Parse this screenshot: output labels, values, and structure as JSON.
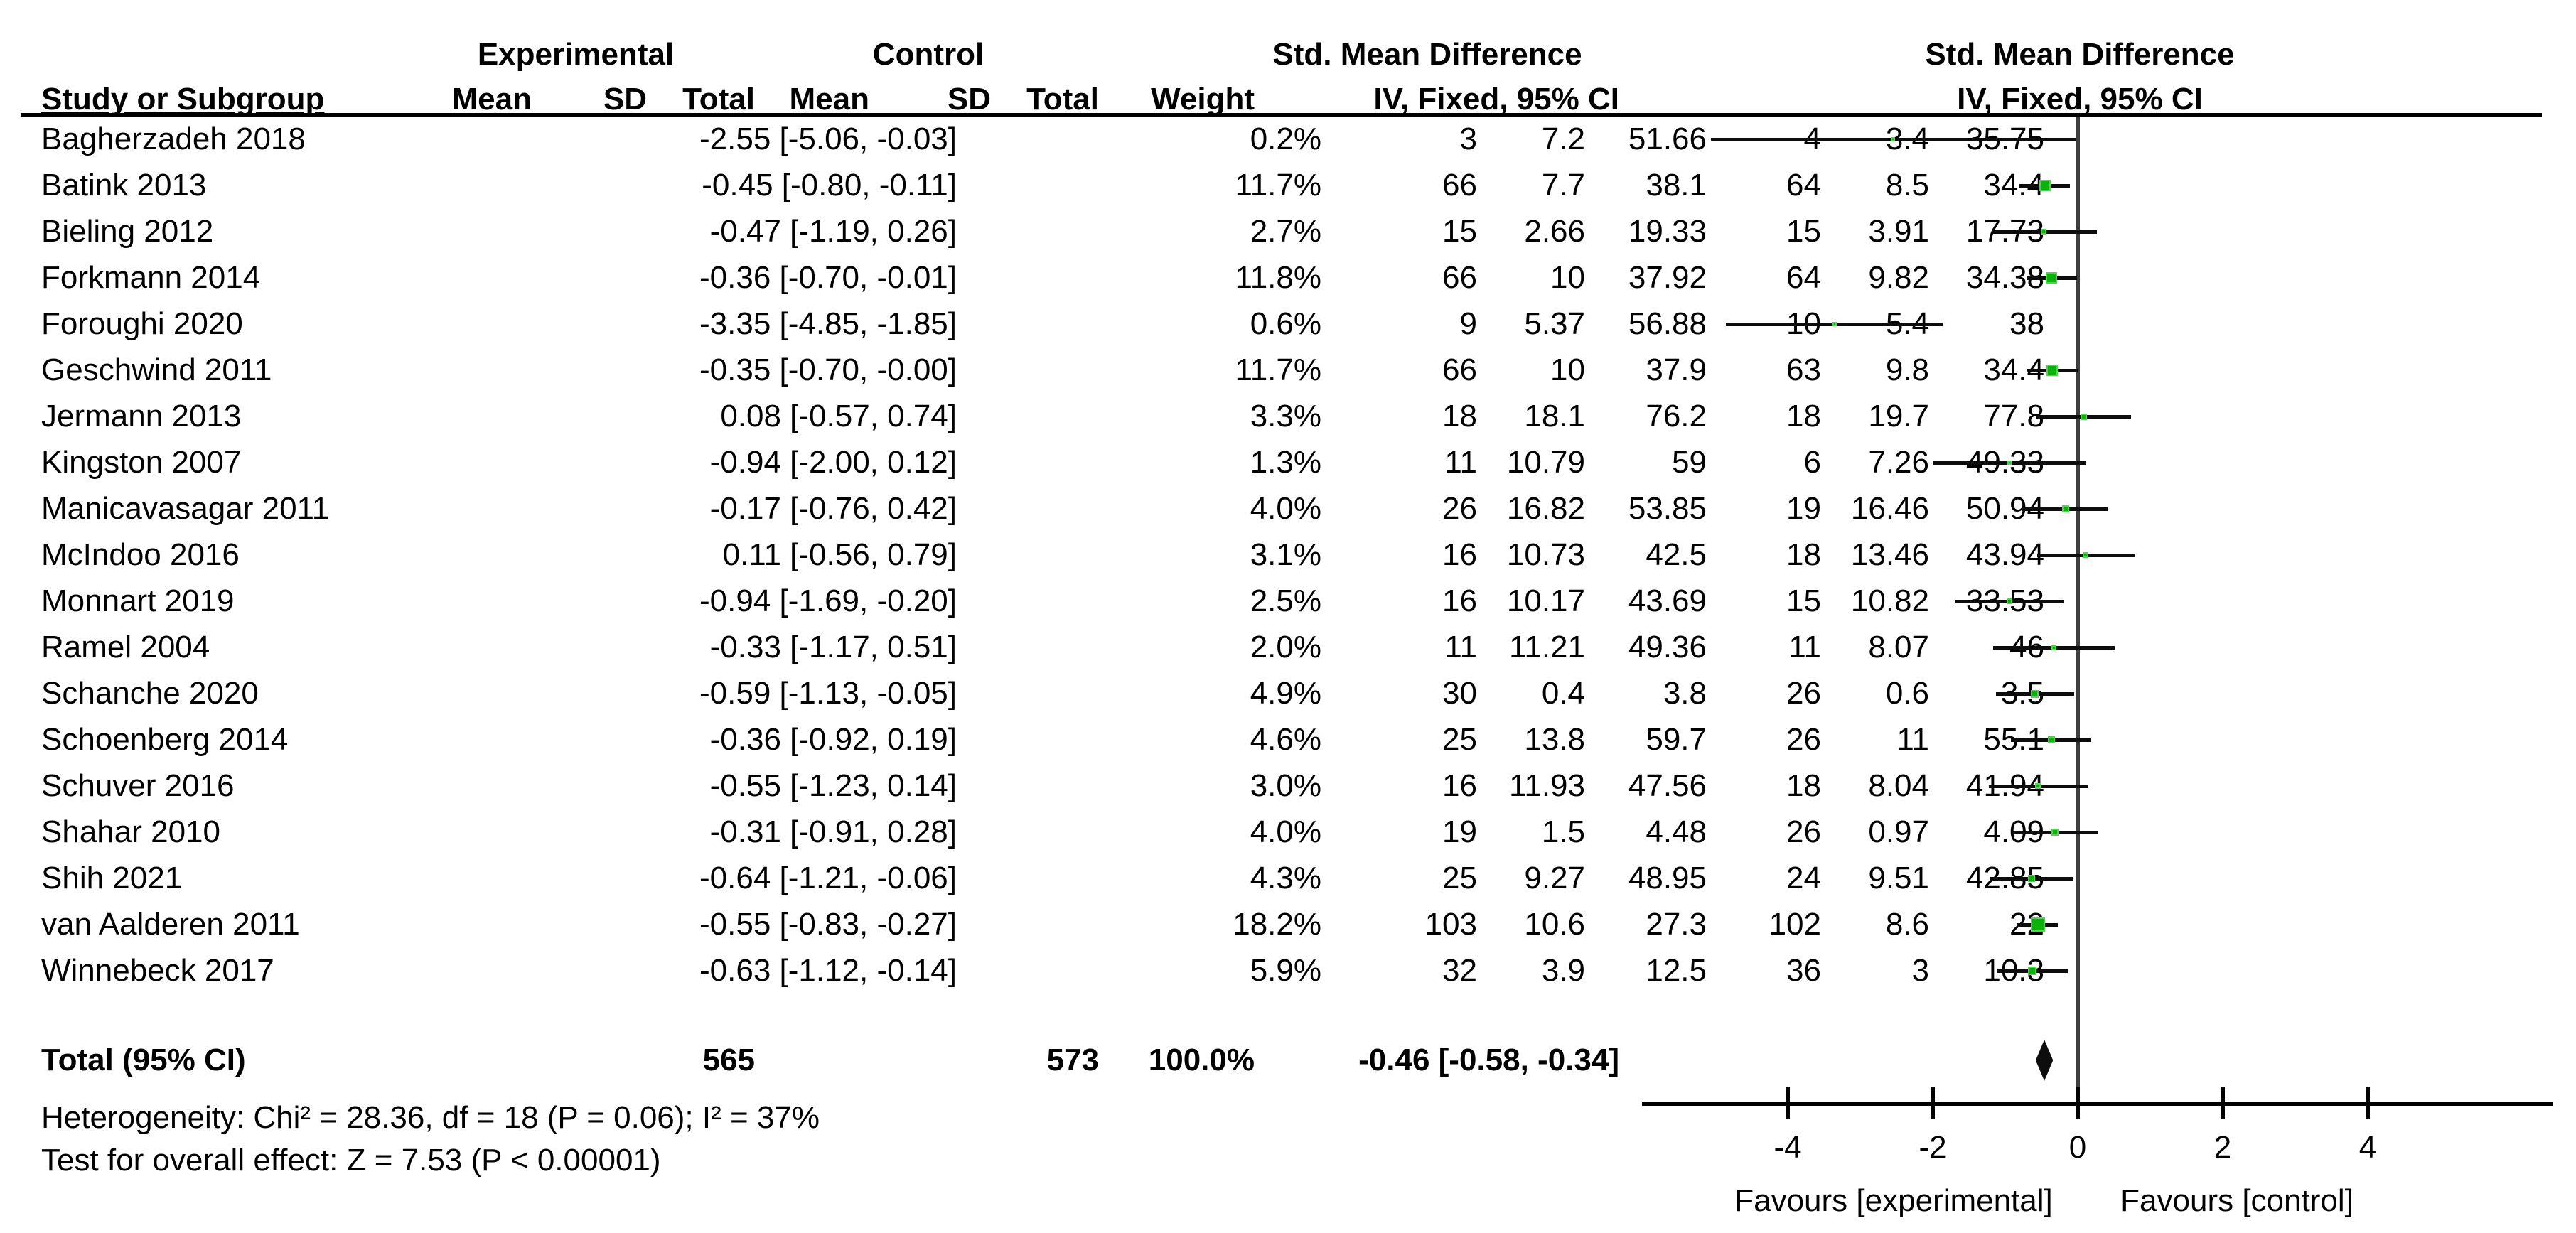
{
  "colors": {
    "marker_green": "#0ab20a",
    "marker_green_border": "#55d055",
    "line_black": "#0d0d0d",
    "zero_line_gray": "#3d3d3d",
    "background": "#ffffff"
  },
  "header": {
    "group_experimental": "Experimental",
    "group_control": "Control",
    "group_smd_table": "Std. Mean Difference",
    "group_smd_plot": "Std. Mean Difference",
    "col_study": "Study or Subgroup",
    "col_mean_exp": "Mean",
    "col_sd_exp": "SD",
    "col_total_exp": "Total",
    "col_mean_ctrl": "Mean",
    "col_sd_ctrl": "SD",
    "col_total_ctrl": "Total",
    "col_weight": "Weight",
    "col_method_table": "IV, Fixed, 95% CI",
    "col_method_plot": "IV, Fixed, 95% CI"
  },
  "chart_data": {
    "type": "forest",
    "effect_measure": "Std. Mean Difference",
    "method": "IV, Fixed, 95% CI",
    "x_axis": {
      "ticks": [
        -4,
        -2,
        0,
        2,
        4
      ],
      "min": -6,
      "max": 6.5,
      "zero_reference": 0
    },
    "favours_left": "Favours [experimental]",
    "favours_right": "Favours [control]",
    "studies": [
      {
        "name": "Bagherzadeh 2018",
        "mean_e": "35.75",
        "sd_e": "3.4",
        "total_e": "4",
        "mean_c": "51.66",
        "sd_c": "7.2",
        "total_c": "3",
        "weight": "0.2%",
        "weight_value": 0.2,
        "smd": -2.55,
        "ci_low": -5.06,
        "ci_high": -0.03,
        "smd_ci_label": "-2.55 [-5.06, -0.03]"
      },
      {
        "name": "Batink 2013",
        "mean_e": "34.4",
        "sd_e": "8.5",
        "total_e": "64",
        "mean_c": "38.1",
        "sd_c": "7.7",
        "total_c": "66",
        "weight": "11.7%",
        "weight_value": 11.7,
        "smd": -0.45,
        "ci_low": -0.8,
        "ci_high": -0.11,
        "smd_ci_label": "-0.45 [-0.80, -0.11]"
      },
      {
        "name": "Bieling 2012",
        "mean_e": "17.73",
        "sd_e": "3.91",
        "total_e": "15",
        "mean_c": "19.33",
        "sd_c": "2.66",
        "total_c": "15",
        "weight": "2.7%",
        "weight_value": 2.7,
        "smd": -0.47,
        "ci_low": -1.19,
        "ci_high": 0.26,
        "smd_ci_label": "-0.47 [-1.19, 0.26]"
      },
      {
        "name": "Forkmann 2014",
        "mean_e": "34.38",
        "sd_e": "9.82",
        "total_e": "64",
        "mean_c": "37.92",
        "sd_c": "10",
        "total_c": "66",
        "weight": "11.8%",
        "weight_value": 11.8,
        "smd": -0.36,
        "ci_low": -0.7,
        "ci_high": -0.01,
        "smd_ci_label": "-0.36 [-0.70, -0.01]"
      },
      {
        "name": "Foroughi 2020",
        "mean_e": "38",
        "sd_e": "5.4",
        "total_e": "10",
        "mean_c": "56.88",
        "sd_c": "5.37",
        "total_c": "9",
        "weight": "0.6%",
        "weight_value": 0.6,
        "smd": -3.35,
        "ci_low": -4.85,
        "ci_high": -1.85,
        "smd_ci_label": "-3.35 [-4.85, -1.85]"
      },
      {
        "name": "Geschwind 2011",
        "mean_e": "34.4",
        "sd_e": "9.8",
        "total_e": "63",
        "mean_c": "37.9",
        "sd_c": "10",
        "total_c": "66",
        "weight": "11.7%",
        "weight_value": 11.7,
        "smd": -0.35,
        "ci_low": -0.7,
        "ci_high": 0.0,
        "smd_ci_label": "-0.35 [-0.70, -0.00]"
      },
      {
        "name": "Jermann 2013",
        "mean_e": "77.8",
        "sd_e": "19.7",
        "total_e": "18",
        "mean_c": "76.2",
        "sd_c": "18.1",
        "total_c": "18",
        "weight": "3.3%",
        "weight_value": 3.3,
        "smd": 0.08,
        "ci_low": -0.57,
        "ci_high": 0.74,
        "smd_ci_label": "0.08 [-0.57, 0.74]"
      },
      {
        "name": "Kingston 2007",
        "mean_e": "49.33",
        "sd_e": "7.26",
        "total_e": "6",
        "mean_c": "59",
        "sd_c": "10.79",
        "total_c": "11",
        "weight": "1.3%",
        "weight_value": 1.3,
        "smd": -0.94,
        "ci_low": -2.0,
        "ci_high": 0.12,
        "smd_ci_label": "-0.94 [-2.00, 0.12]"
      },
      {
        "name": "Manicavasagar 2011",
        "mean_e": "50.94",
        "sd_e": "16.46",
        "total_e": "19",
        "mean_c": "53.85",
        "sd_c": "16.82",
        "total_c": "26",
        "weight": "4.0%",
        "weight_value": 4.0,
        "smd": -0.17,
        "ci_low": -0.76,
        "ci_high": 0.42,
        "smd_ci_label": "-0.17 [-0.76, 0.42]"
      },
      {
        "name": "McIndoo 2016",
        "mean_e": "43.94",
        "sd_e": "13.46",
        "total_e": "18",
        "mean_c": "42.5",
        "sd_c": "10.73",
        "total_c": "16",
        "weight": "3.1%",
        "weight_value": 3.1,
        "smd": 0.11,
        "ci_low": -0.56,
        "ci_high": 0.79,
        "smd_ci_label": "0.11 [-0.56, 0.79]"
      },
      {
        "name": "Monnart 2019",
        "mean_e": "33.53",
        "sd_e": "10.82",
        "total_e": "15",
        "mean_c": "43.69",
        "sd_c": "10.17",
        "total_c": "16",
        "weight": "2.5%",
        "weight_value": 2.5,
        "smd": -0.94,
        "ci_low": -1.69,
        "ci_high": -0.2,
        "smd_ci_label": "-0.94 [-1.69, -0.20]"
      },
      {
        "name": "Ramel 2004",
        "mean_e": "46",
        "sd_e": "8.07",
        "total_e": "11",
        "mean_c": "49.36",
        "sd_c": "11.21",
        "total_c": "11",
        "weight": "2.0%",
        "weight_value": 2.0,
        "smd": -0.33,
        "ci_low": -1.17,
        "ci_high": 0.51,
        "smd_ci_label": "-0.33 [-1.17, 0.51]"
      },
      {
        "name": "Schanche 2020",
        "mean_e": "3.5",
        "sd_e": "0.6",
        "total_e": "26",
        "mean_c": "3.8",
        "sd_c": "0.4",
        "total_c": "30",
        "weight": "4.9%",
        "weight_value": 4.9,
        "smd": -0.59,
        "ci_low": -1.13,
        "ci_high": -0.05,
        "smd_ci_label": "-0.59 [-1.13, -0.05]"
      },
      {
        "name": "Schoenberg 2014",
        "mean_e": "55.1",
        "sd_e": "11",
        "total_e": "26",
        "mean_c": "59.7",
        "sd_c": "13.8",
        "total_c": "25",
        "weight": "4.6%",
        "weight_value": 4.6,
        "smd": -0.36,
        "ci_low": -0.92,
        "ci_high": 0.19,
        "smd_ci_label": "-0.36 [-0.92, 0.19]"
      },
      {
        "name": "Schuver 2016",
        "mean_e": "41.94",
        "sd_e": "8.04",
        "total_e": "18",
        "mean_c": "47.56",
        "sd_c": "11.93",
        "total_c": "16",
        "weight": "3.0%",
        "weight_value": 3.0,
        "smd": -0.55,
        "ci_low": -1.23,
        "ci_high": 0.14,
        "smd_ci_label": "-0.55 [-1.23, 0.14]"
      },
      {
        "name": "Shahar 2010",
        "mean_e": "4.09",
        "sd_e": "0.97",
        "total_e": "26",
        "mean_c": "4.48",
        "sd_c": "1.5",
        "total_c": "19",
        "weight": "4.0%",
        "weight_value": 4.0,
        "smd": -0.31,
        "ci_low": -0.91,
        "ci_high": 0.28,
        "smd_ci_label": "-0.31 [-0.91, 0.28]"
      },
      {
        "name": "Shih 2021",
        "mean_e": "42.85",
        "sd_e": "9.51",
        "total_e": "24",
        "mean_c": "48.95",
        "sd_c": "9.27",
        "total_c": "25",
        "weight": "4.3%",
        "weight_value": 4.3,
        "smd": -0.64,
        "ci_low": -1.21,
        "ci_high": -0.06,
        "smd_ci_label": "-0.64 [-1.21, -0.06]"
      },
      {
        "name": "van Aalderen 2011",
        "mean_e": "22",
        "sd_e": "8.6",
        "total_e": "102",
        "mean_c": "27.3",
        "sd_c": "10.6",
        "total_c": "103",
        "weight": "18.2%",
        "weight_value": 18.2,
        "smd": -0.55,
        "ci_low": -0.83,
        "ci_high": -0.27,
        "smd_ci_label": "-0.55 [-0.83, -0.27]"
      },
      {
        "name": "Winnebeck 2017",
        "mean_e": "10.3",
        "sd_e": "3",
        "total_e": "36",
        "mean_c": "12.5",
        "sd_c": "3.9",
        "total_c": "32",
        "weight": "5.9%",
        "weight_value": 5.9,
        "smd": -0.63,
        "ci_low": -1.12,
        "ci_high": -0.14,
        "smd_ci_label": "-0.63 [-1.12, -0.14]"
      }
    ],
    "total": {
      "label": "Total (95% CI)",
      "total_e": "565",
      "total_c": "573",
      "weight": "100.0%",
      "smd": -0.46,
      "ci_low": -0.58,
      "ci_high": -0.34,
      "smd_ci_label": "-0.46 [-0.58, -0.34]"
    },
    "heterogeneity": "Heterogeneity: Chi² = 28.36, df = 18 (P = 0.06); I² = 37%",
    "overall_effect": "Test for overall effect: Z = 7.53 (P < 0.00001)"
  }
}
